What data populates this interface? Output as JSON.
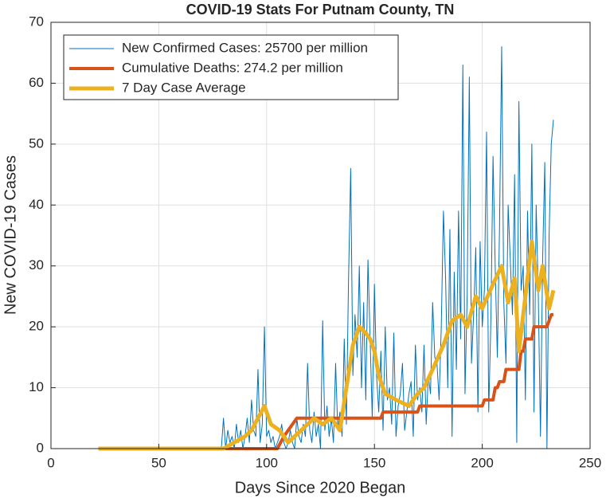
{
  "chart_data": {
    "type": "line",
    "title": "COVID-19 Stats For Putnam County, TN",
    "xlabel": "Days Since 2020 Began",
    "ylabel": "New COVID-19 Cases",
    "xlim": [
      0,
      250
    ],
    "xticks": [
      0,
      50,
      100,
      150,
      200,
      250
    ],
    "ylim": [
      0,
      70
    ],
    "yticks": [
      0,
      10,
      20,
      30,
      40,
      50,
      60,
      70
    ],
    "grid": true,
    "legend": "upper-left",
    "series": [
      {
        "name": "New Confirmed Cases: 25700 per million",
        "color": "#0072bd",
        "width": 1,
        "x": [
          22,
          79,
          80,
          81,
          82,
          83,
          84,
          85,
          86,
          87,
          88,
          89,
          90,
          91,
          92,
          93,
          94,
          95,
          96,
          97,
          98,
          99,
          100,
          101,
          102,
          103,
          104,
          105,
          106,
          107,
          108,
          109,
          110,
          111,
          112,
          113,
          114,
          115,
          116,
          117,
          118,
          119,
          120,
          121,
          122,
          123,
          124,
          125,
          126,
          127,
          128,
          129,
          130,
          131,
          132,
          133,
          134,
          135,
          136,
          137,
          138,
          139,
          140,
          141,
          142,
          143,
          144,
          145,
          146,
          147,
          148,
          149,
          150,
          151,
          152,
          153,
          154,
          155,
          156,
          157,
          158,
          159,
          160,
          161,
          162,
          163,
          164,
          165,
          166,
          167,
          168,
          169,
          170,
          171,
          172,
          173,
          174,
          175,
          176,
          177,
          178,
          179,
          180,
          181,
          182,
          183,
          184,
          185,
          186,
          187,
          188,
          189,
          190,
          191,
          192,
          193,
          194,
          195,
          196,
          197,
          198,
          199,
          200,
          201,
          202,
          203,
          204,
          205,
          206,
          207,
          208,
          209,
          210,
          211,
          212,
          213,
          214,
          215,
          216,
          217,
          218,
          219,
          220,
          221,
          222,
          223,
          224,
          225,
          226,
          227,
          228,
          229,
          230,
          231,
          232,
          233
        ],
        "values": [
          0,
          0,
          5,
          0,
          3,
          1,
          2,
          0,
          4,
          1,
          3,
          0,
          2,
          5,
          1,
          8,
          3,
          2,
          13,
          1,
          4,
          20,
          2,
          3,
          1,
          2,
          0,
          1,
          2,
          4,
          1,
          0,
          1,
          3,
          1,
          0,
          5,
          2,
          1,
          4,
          2,
          14,
          3,
          1,
          6,
          2,
          4,
          0,
          21,
          3,
          7,
          2,
          5,
          1,
          14,
          3,
          6,
          2,
          18,
          4,
          28,
          46,
          12,
          22,
          15,
          30,
          10,
          24,
          8,
          31,
          18,
          5,
          27,
          12,
          6,
          16,
          3,
          20,
          8,
          10,
          4,
          19,
          2,
          7,
          9,
          14,
          3,
          6,
          9,
          11,
          2,
          17,
          8,
          10,
          6,
          17,
          4,
          12,
          9,
          24,
          15,
          14,
          8,
          20,
          39,
          28,
          10,
          36,
          2,
          29,
          13,
          39,
          18,
          63,
          9,
          25,
          61,
          14,
          22,
          33,
          6,
          34,
          20,
          26,
          52,
          6,
          21,
          48,
          30,
          15,
          36,
          66,
          24,
          14,
          40,
          31,
          22,
          45,
          1,
          57,
          26,
          30,
          8,
          39,
          22,
          50,
          6,
          40,
          25,
          2,
          31,
          47,
          0,
          35,
          50,
          54
        ]
      },
      {
        "name": "Cumulative Deaths: 274.2 per million",
        "color": "#d95319",
        "width": 4,
        "x": [
          22,
          105,
          108,
          110,
          112,
          114,
          153,
          154,
          170,
          171,
          200,
          201,
          205,
          206,
          207,
          208,
          210,
          211,
          217,
          218,
          219,
          220,
          223,
          224,
          230,
          231,
          232,
          233
        ],
        "values": [
          0,
          0,
          2,
          3,
          4,
          5,
          5,
          6,
          6,
          7,
          7,
          8,
          8,
          10,
          10,
          11,
          11,
          13,
          13,
          16,
          16,
          18,
          18,
          20,
          20,
          21,
          22,
          22
        ]
      },
      {
        "name": "7 Day Case Average",
        "color": "#edb120",
        "width": 5,
        "x": [
          22,
          80,
          85,
          90,
          93,
          96,
          99,
          102,
          106,
          110,
          113,
          116,
          119,
          122,
          126,
          130,
          134,
          137,
          140,
          143,
          146,
          148,
          150,
          152,
          155,
          160,
          166,
          170,
          173,
          177,
          182,
          186,
          190,
          193,
          197,
          200,
          205,
          209,
          212,
          215,
          217,
          220,
          223,
          226,
          228,
          231,
          233
        ],
        "values": [
          0,
          0,
          1,
          2,
          3,
          5,
          7,
          4,
          3,
          1,
          2,
          3,
          4,
          5,
          4,
          5,
          3,
          10,
          17,
          20,
          19,
          18,
          16,
          12,
          9,
          8,
          7,
          9,
          10,
          13,
          17,
          21,
          22,
          20,
          25,
          23,
          27,
          30,
          24,
          28,
          16,
          25,
          34,
          26,
          30,
          23,
          26
        ]
      }
    ]
  }
}
